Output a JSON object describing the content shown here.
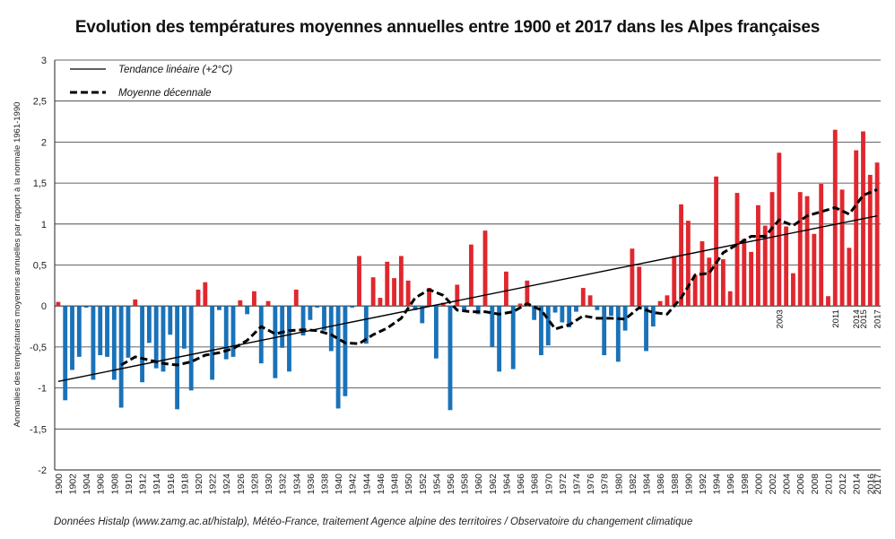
{
  "chart_data": {
    "type": "bar",
    "title": "Evolution des températures moyennes annuelles entre 1900 et 2017 dans les Alpes françaises",
    "ylabel": "Anomalies des températures moyennes annuelles par rapport à la normale 1961-1990",
    "xlabel": "",
    "ylim": [
      -2,
      3
    ],
    "yticks": [
      3,
      2.5,
      2,
      1.5,
      1,
      0.5,
      0,
      -0.5,
      -1,
      -1.5,
      -2
    ],
    "ytick_labels": [
      "3",
      "2,5",
      "2",
      "1,5",
      "1",
      "0,5",
      "0",
      "-0,5",
      "-1",
      "-1,5",
      "-2"
    ],
    "grid": true,
    "legend_position": "top-left",
    "colors": {
      "positive": "#e0272e",
      "negative": "#1a72b8",
      "trend": "#000000",
      "decadal": "#000000"
    },
    "x_start": 1900,
    "x_end": 2017,
    "xtick_labels": [
      "1900",
      "1902",
      "1904",
      "1906",
      "1908",
      "1910",
      "1912",
      "1914",
      "1916",
      "1918",
      "1920",
      "1922",
      "1924",
      "1926",
      "1928",
      "1930",
      "1932",
      "1934",
      "1936",
      "1938",
      "1940",
      "1942",
      "1944",
      "1946",
      "1948",
      "1950",
      "1952",
      "1954",
      "1956",
      "1958",
      "1960",
      "1962",
      "1964",
      "1966",
      "1968",
      "1970",
      "1972",
      "1974",
      "1976",
      "1978",
      "1980",
      "1982",
      "1984",
      "1986",
      "1988",
      "1990",
      "1992",
      "1994",
      "1996",
      "1998",
      "2000",
      "2002",
      "2004",
      "2006",
      "2008",
      "2010",
      "2012",
      "2014",
      "2016",
      "2017"
    ],
    "values": [
      0.05,
      -1.15,
      -0.78,
      -0.62,
      -0.02,
      -0.9,
      -0.6,
      -0.62,
      -0.9,
      -1.24,
      -0.63,
      0.08,
      -0.93,
      -0.45,
      -0.76,
      -0.8,
      -0.35,
      -1.26,
      -0.52,
      -1.03,
      0.2,
      0.29,
      -0.9,
      -0.05,
      -0.65,
      -0.62,
      0.07,
      -0.1,
      0.18,
      -0.7,
      0.06,
      -0.88,
      -0.51,
      -0.8,
      0.2,
      -0.36,
      -0.17,
      -0.02,
      -0.3,
      -0.55,
      -1.25,
      -1.1,
      -0.02,
      0.61,
      -0.46,
      0.35,
      0.1,
      0.54,
      0.34,
      0.61,
      0.31,
      -0.05,
      -0.21,
      0.22,
      -0.64,
      0.04,
      -1.27,
      0.26,
      -0.05,
      0.75,
      -0.1,
      0.92,
      -0.5,
      -0.8,
      0.42,
      -0.77,
      0.03,
      0.31,
      -0.17,
      -0.6,
      -0.48,
      -0.08,
      -0.2,
      -0.26,
      -0.07,
      0.22,
      0.13,
      -0.05,
      -0.6,
      -0.12,
      -0.68,
      -0.3,
      0.7,
      0.48,
      -0.55,
      -0.25,
      0.06,
      0.13,
      0.61,
      1.24,
      1.04,
      0.38,
      0.79,
      0.59,
      1.58,
      0.57,
      0.18,
      1.38,
      0.82,
      0.66,
      1.23,
      0.98,
      1.39,
      1.87,
      0.97,
      0.4,
      1.39,
      1.34,
      0.88,
      1.49,
      0.12,
      2.15,
      1.42,
      0.71,
      1.9,
      2.13,
      1.6,
      1.75
    ],
    "trend": {
      "name": "Tendance linéaire (+2°C)",
      "x": [
        1900,
        2017
      ],
      "y": [
        -0.92,
        1.1
      ]
    },
    "decadal": {
      "name": "Moyenne décennale",
      "x": [
        1909,
        1911,
        1913,
        1915,
        1917,
        1919,
        1921,
        1923,
        1925,
        1927,
        1929,
        1931,
        1933,
        1935,
        1937,
        1939,
        1941,
        1943,
        1945,
        1947,
        1949,
        1951,
        1953,
        1955,
        1957,
        1959,
        1961,
        1963,
        1965,
        1967,
        1969,
        1971,
        1973,
        1975,
        1977,
        1979,
        1981,
        1983,
        1985,
        1987,
        1989,
        1991,
        1993,
        1995,
        1997,
        1999,
        2001,
        2003,
        2005,
        2007,
        2009,
        2011,
        2013,
        2015,
        2017
      ],
      "y": [
        -0.72,
        -0.62,
        -0.66,
        -0.7,
        -0.72,
        -0.68,
        -0.6,
        -0.57,
        -0.52,
        -0.42,
        -0.25,
        -0.34,
        -0.3,
        -0.29,
        -0.3,
        -0.35,
        -0.45,
        -0.46,
        -0.35,
        -0.27,
        -0.15,
        0.1,
        0.2,
        0.13,
        -0.05,
        -0.07,
        -0.07,
        -0.1,
        -0.07,
        0.03,
        -0.05,
        -0.28,
        -0.23,
        -0.12,
        -0.15,
        -0.15,
        -0.16,
        -0.02,
        -0.08,
        -0.1,
        0.1,
        0.38,
        0.4,
        0.65,
        0.75,
        0.85,
        0.85,
        1.05,
        0.98,
        1.1,
        1.15,
        1.2,
        1.12,
        1.35,
        1.42
      ]
    },
    "annotations": [
      {
        "x": 2003,
        "label": "2003"
      },
      {
        "x": 2011,
        "label": "2011"
      },
      {
        "x": 2014,
        "label": "2014"
      },
      {
        "x": 2015,
        "label": "2015"
      },
      {
        "x": 2017,
        "label": "2017"
      }
    ]
  },
  "source_note": "Données Histalp (www.zamg.ac.at/histalp), Météo-France, traitement Agence alpine des territoires / Observatoire du changement climatique"
}
